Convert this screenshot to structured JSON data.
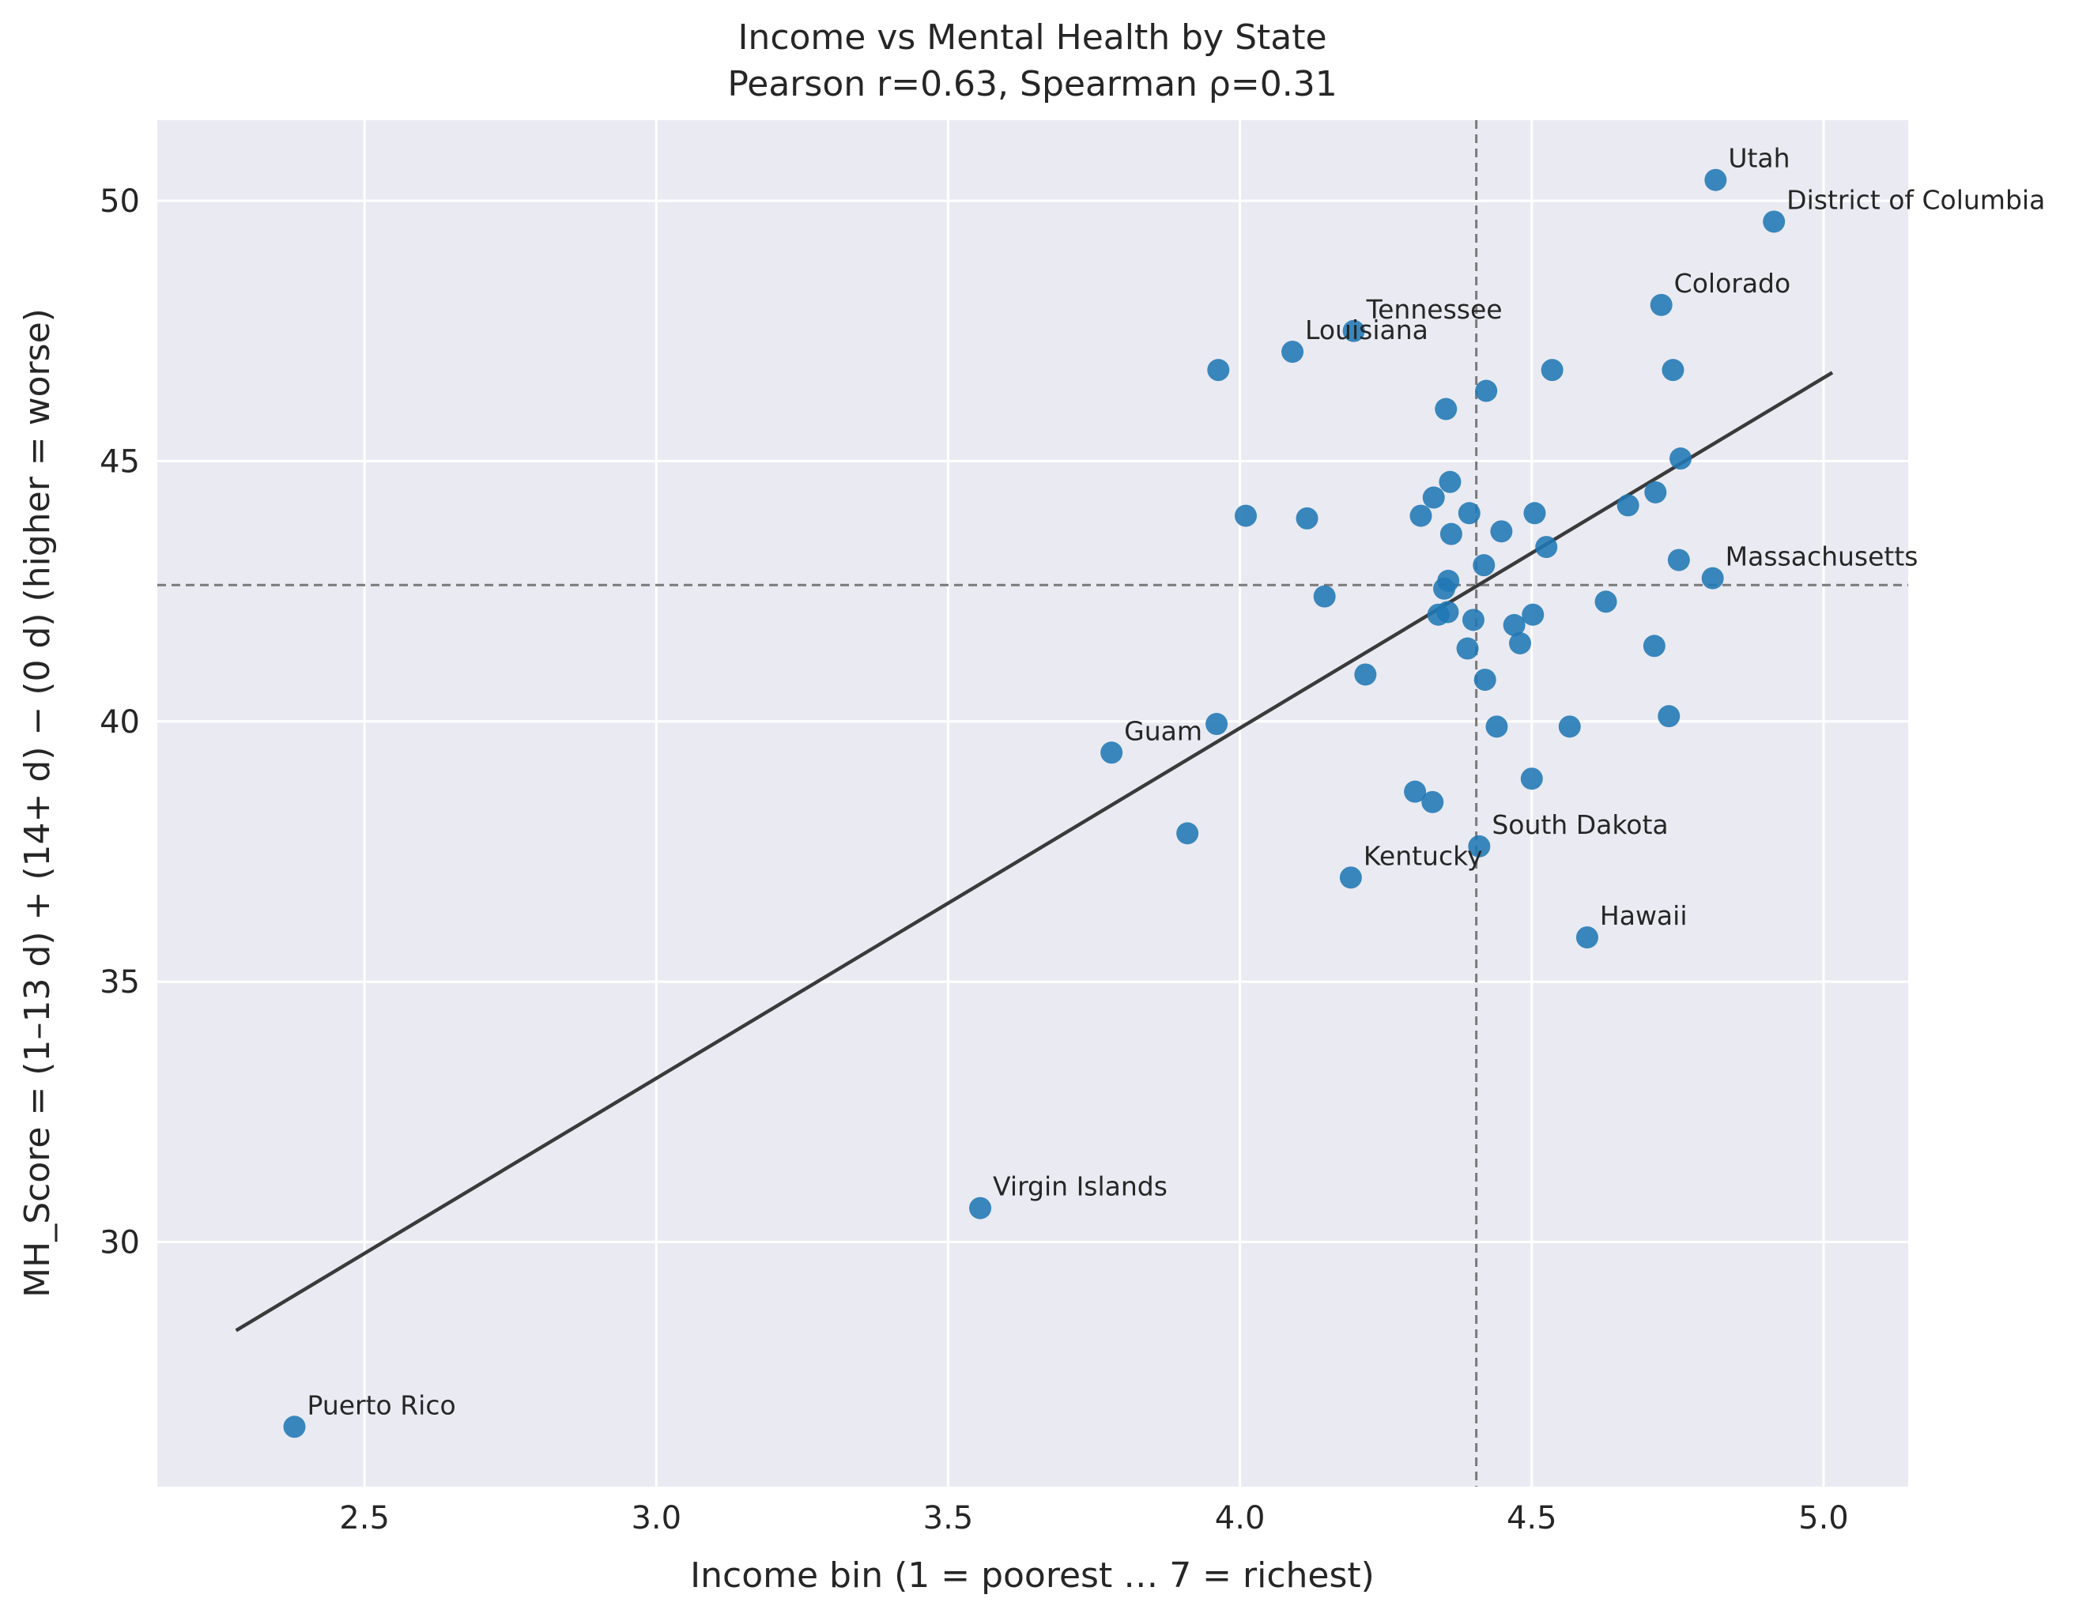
{
  "chart_data": {
    "type": "scatter",
    "title_line1": "Income vs Mental Health by State",
    "title_line2": "Pearson r=0.63, Spearman ρ=0.31",
    "xlabel": "Income bin (1 = poorest … 7 = richest)",
    "ylabel": "MH_Score = (1–13 d) + (14+ d) − (0 d)    (higher = worse)",
    "xlim": [
      2.145,
      5.145
    ],
    "ylim": [
      25.3,
      51.55
    ],
    "xticks": [
      2.5,
      3.0,
      3.5,
      4.0,
      4.5,
      5.0
    ],
    "xtick_labels": [
      "2.5",
      "3.0",
      "3.5",
      "4.0",
      "4.5",
      "5.0"
    ],
    "yticks": [
      30,
      35,
      40,
      45,
      50
    ],
    "ytick_labels": [
      "30",
      "35",
      "40",
      "45",
      "50"
    ],
    "grid": true,
    "point_color": "#1f77b4",
    "trend_color": "#3a3a3a",
    "background_color": "#eaeaf2",
    "median_x": 4.405,
    "median_y": 42.62,
    "trend_line": {
      "x": [
        2.28,
        5.015
      ],
      "y": [
        28.3,
        46.7
      ]
    },
    "points": [
      {
        "x": 2.38,
        "y": 26.45,
        "label": "Puerto Rico"
      },
      {
        "x": 3.555,
        "y": 30.65,
        "label": "Virgin Islands"
      },
      {
        "x": 3.78,
        "y": 39.4,
        "label": "Guam"
      },
      {
        "x": 3.91,
        "y": 37.85,
        "label": ""
      },
      {
        "x": 3.96,
        "y": 39.95,
        "label": ""
      },
      {
        "x": 3.963,
        "y": 46.75,
        "label": ""
      },
      {
        "x": 4.01,
        "y": 43.95,
        "label": ""
      },
      {
        "x": 4.09,
        "y": 47.1,
        "label": "Louisiana"
      },
      {
        "x": 4.115,
        "y": 43.9,
        "label": ""
      },
      {
        "x": 4.145,
        "y": 42.4,
        "label": ""
      },
      {
        "x": 4.19,
        "y": 37.0,
        "label": "Kentucky"
      },
      {
        "x": 4.195,
        "y": 47.5,
        "label": "Tennessee"
      },
      {
        "x": 4.215,
        "y": 40.9,
        "label": ""
      },
      {
        "x": 4.3,
        "y": 38.65,
        "label": ""
      },
      {
        "x": 4.31,
        "y": 43.95,
        "label": ""
      },
      {
        "x": 4.33,
        "y": 38.45,
        "label": ""
      },
      {
        "x": 4.332,
        "y": 44.3,
        "label": ""
      },
      {
        "x": 4.34,
        "y": 42.05,
        "label": ""
      },
      {
        "x": 4.35,
        "y": 42.55,
        "label": ""
      },
      {
        "x": 4.353,
        "y": 46.0,
        "label": ""
      },
      {
        "x": 4.356,
        "y": 42.1,
        "label": ""
      },
      {
        "x": 4.357,
        "y": 42.7,
        "label": ""
      },
      {
        "x": 4.36,
        "y": 44.6,
        "label": ""
      },
      {
        "x": 4.362,
        "y": 43.6,
        "label": ""
      },
      {
        "x": 4.39,
        "y": 41.4,
        "label": ""
      },
      {
        "x": 4.393,
        "y": 44.0,
        "label": ""
      },
      {
        "x": 4.4,
        "y": 41.95,
        "label": ""
      },
      {
        "x": 4.41,
        "y": 37.6,
        "label": "South Dakota"
      },
      {
        "x": 4.418,
        "y": 43.0,
        "label": ""
      },
      {
        "x": 4.42,
        "y": 40.8,
        "label": ""
      },
      {
        "x": 4.422,
        "y": 46.35,
        "label": ""
      },
      {
        "x": 4.44,
        "y": 39.9,
        "label": ""
      },
      {
        "x": 4.448,
        "y": 43.65,
        "label": ""
      },
      {
        "x": 4.47,
        "y": 41.85,
        "label": ""
      },
      {
        "x": 4.48,
        "y": 41.5,
        "label": ""
      },
      {
        "x": 4.5,
        "y": 38.9,
        "label": ""
      },
      {
        "x": 4.502,
        "y": 42.05,
        "label": ""
      },
      {
        "x": 4.505,
        "y": 44.0,
        "label": ""
      },
      {
        "x": 4.525,
        "y": 43.35,
        "label": ""
      },
      {
        "x": 4.535,
        "y": 46.75,
        "label": ""
      },
      {
        "x": 4.565,
        "y": 39.9,
        "label": ""
      },
      {
        "x": 4.595,
        "y": 35.85,
        "label": "Hawaii"
      },
      {
        "x": 4.627,
        "y": 42.3,
        "label": ""
      },
      {
        "x": 4.665,
        "y": 44.15,
        "label": ""
      },
      {
        "x": 4.71,
        "y": 41.45,
        "label": ""
      },
      {
        "x": 4.712,
        "y": 44.4,
        "label": ""
      },
      {
        "x": 4.722,
        "y": 48.0,
        "label": "Colorado"
      },
      {
        "x": 4.735,
        "y": 40.1,
        "label": ""
      },
      {
        "x": 4.742,
        "y": 46.75,
        "label": ""
      },
      {
        "x": 4.752,
        "y": 43.1,
        "label": ""
      },
      {
        "x": 4.755,
        "y": 45.05,
        "label": ""
      },
      {
        "x": 4.81,
        "y": 42.75,
        "label": "Massachusetts"
      },
      {
        "x": 4.815,
        "y": 50.4,
        "label": "Utah"
      },
      {
        "x": 4.915,
        "y": 49.6,
        "label": "District of Columbia"
      }
    ]
  }
}
